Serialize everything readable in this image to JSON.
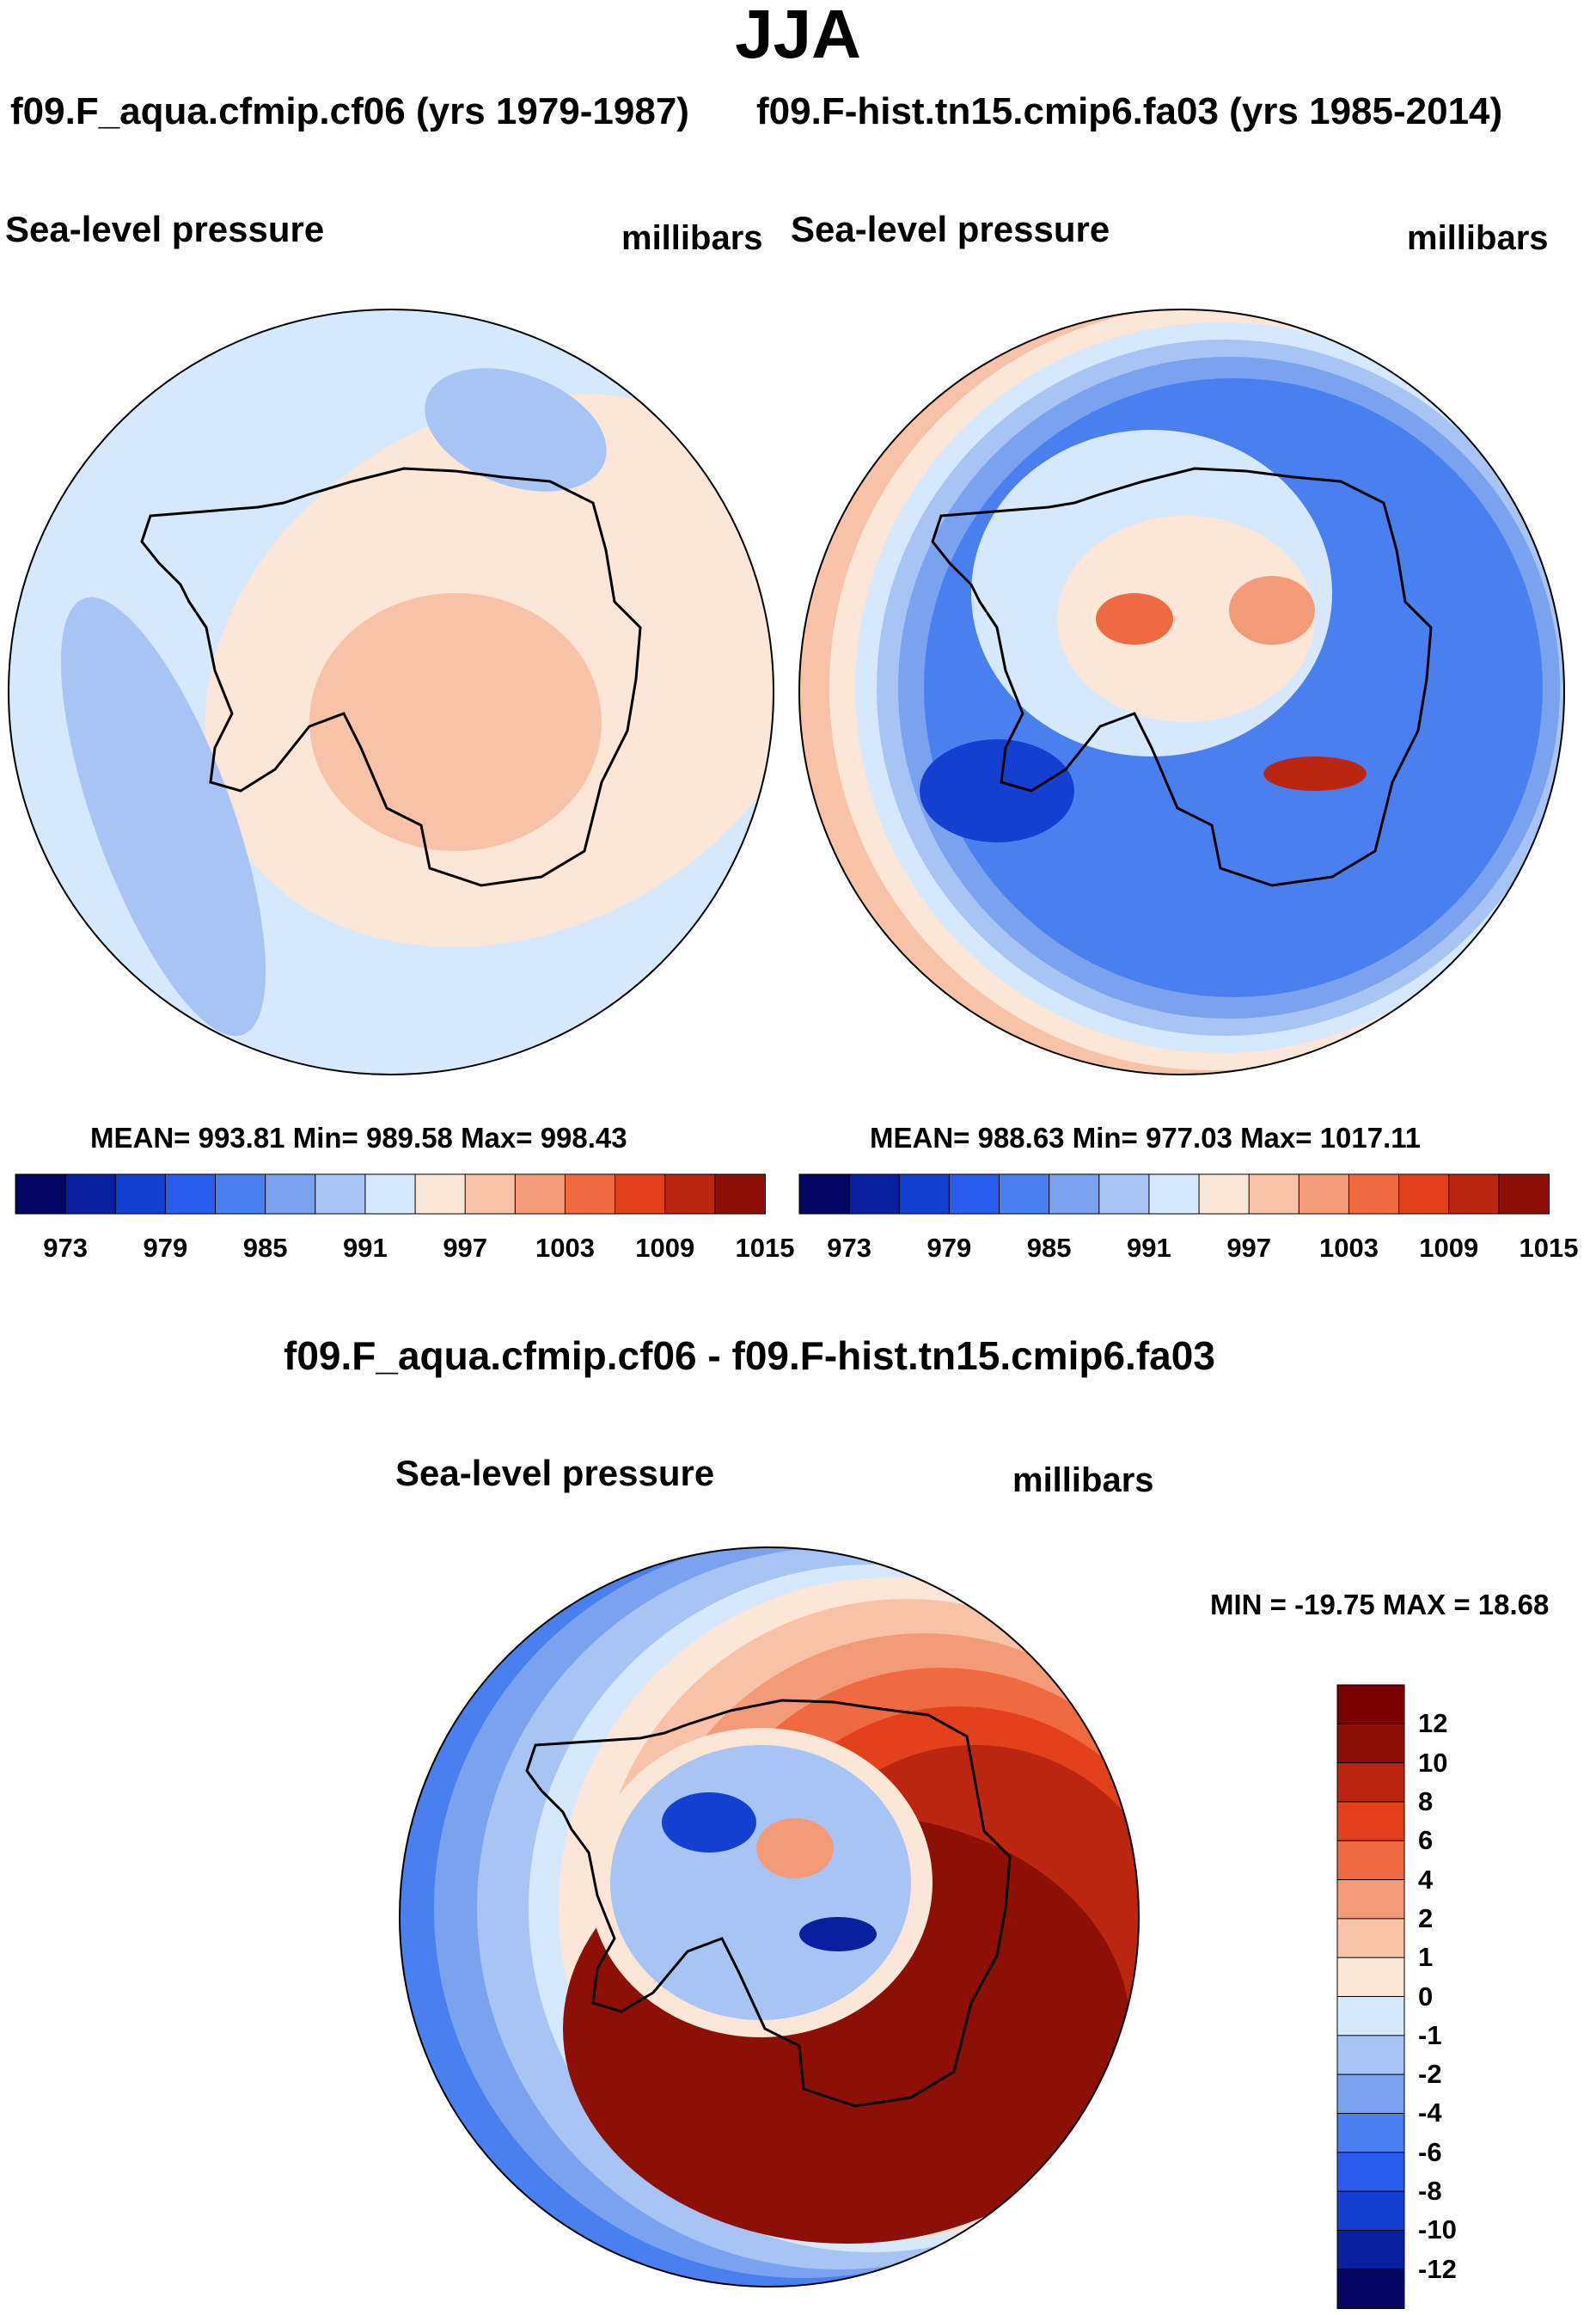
{
  "season": "JJA",
  "chart_data": [
    {
      "type": "heatmap",
      "panel": "top-left",
      "case_title": "f09.F_aqua.cfmip.cf06 (yrs 1979-1987)",
      "variable": "Sea-level pressure",
      "units": "millibars",
      "stats": {
        "mean": "993.81",
        "min": "989.58",
        "max": "998.43"
      },
      "stats_text": "MEAN= 993.81  Min= 989.58  Max= 998.43",
      "colorbar_ticks": [
        "973",
        "979",
        "985",
        "991",
        "997",
        "1003",
        "1009",
        "1015"
      ],
      "contour_levels": [
        973,
        976,
        979,
        982,
        985,
        988,
        991,
        994,
        997,
        1000,
        1003,
        1006,
        1009,
        1012,
        1015
      ],
      "projection": "south-polar stereographic",
      "region": "Antarctica"
    },
    {
      "type": "heatmap",
      "panel": "top-right",
      "case_title": "f09.F-hist.tn15.cmip6.fa03 (yrs 1985-2014)",
      "variable": "Sea-level pressure",
      "units": "millibars",
      "stats": {
        "mean": "988.63",
        "min": "977.03",
        "max": "1017.11"
      },
      "stats_text": "MEAN= 988.63  Min= 977.03  Max= 1017.11",
      "colorbar_ticks": [
        "973",
        "979",
        "985",
        "991",
        "997",
        "1003",
        "1009",
        "1015"
      ],
      "contour_levels": [
        973,
        976,
        979,
        982,
        985,
        988,
        991,
        994,
        997,
        1000,
        1003,
        1006,
        1009,
        1012,
        1015
      ],
      "projection": "south-polar stereographic",
      "region": "Antarctica"
    },
    {
      "type": "heatmap",
      "panel": "bottom",
      "case_title": "f09.F_aqua.cfmip.cf06 - f09.F-hist.tn15.cmip6.fa03",
      "variable": "Sea-level pressure",
      "units": "millibars",
      "minmax_text": "MIN = -19.75 MAX =  18.68",
      "stats": {
        "min": "-19.75",
        "max": "18.68"
      },
      "colorbar_ticks": [
        "12",
        "10",
        "8",
        "6",
        "4",
        "2",
        "1",
        "0",
        "-1",
        "-2",
        "-4",
        "-6",
        "-8",
        "-10",
        "-12"
      ],
      "contour_levels": [
        -12,
        -10,
        -8,
        -6,
        -4,
        -2,
        -1,
        0,
        1,
        2,
        4,
        6,
        8,
        10,
        12
      ],
      "projection": "south-polar stereographic",
      "region": "Antarctica"
    }
  ],
  "palette": {
    "abs": [
      "#050563",
      "#0a1ea0",
      "#1440d2",
      "#2a5cf0",
      "#4a7ff0",
      "#7aa2ee",
      "#a8c4f4",
      "#d6e8fb",
      "#fbe6d8",
      "#f7c2a8",
      "#f39a78",
      "#ef6a40",
      "#e3401c",
      "#bc2610",
      "#8e0f06"
    ],
    "diff": [
      "#050563",
      "#0a1ea0",
      "#1440d2",
      "#2a5cf0",
      "#4a7ff0",
      "#7aa2ee",
      "#a8c4f4",
      "#d6e8fb",
      "#fbe6d8",
      "#f7c2a8",
      "#f39a78",
      "#ef6a40",
      "#e3401c",
      "#bc2610",
      "#8e0f06",
      "#7a0000"
    ]
  }
}
